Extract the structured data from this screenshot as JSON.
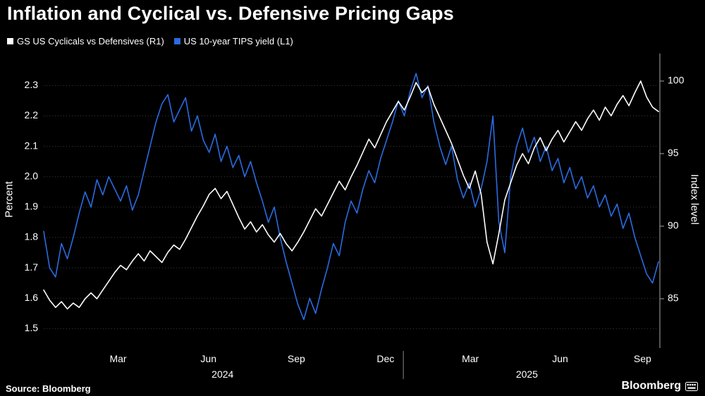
{
  "header": {
    "title": "Inflation and Cyclical vs. Defensive Pricing Gaps"
  },
  "footer": {
    "source": "Source: Bloomberg",
    "logo": "Bloomberg"
  },
  "chart_data": {
    "type": "line",
    "title": "Inflation and Cyclical vs. Defensive Pricing Gaps",
    "x_axis": {
      "start": "Jan 2024",
      "end": "Sep 2025",
      "tick_labels": [
        "Mar",
        "Jun",
        "Sep",
        "Dec",
        "Mar",
        "Jun",
        "Sep"
      ],
      "tick_t": [
        0.121,
        0.268,
        0.411,
        0.556,
        0.694,
        0.84,
        0.974
      ],
      "year_labels": [
        "2024",
        "2025"
      ],
      "year_t": [
        0.291,
        0.786
      ],
      "separator_t": [
        0.585
      ],
      "note": "evenly spaced samples, ~weekly, Jan 2024 through mid-Sep 2025"
    },
    "left_axis": {
      "label": "Percent",
      "ticks": [
        1.5,
        1.6,
        1.7,
        1.8,
        1.9,
        2.0,
        2.1,
        2.2,
        2.3
      ],
      "tick_labels": [
        "1.5",
        "1.6",
        "1.7",
        "1.8",
        "1.9",
        "2.0",
        "2.1",
        "2.2",
        "2.3"
      ],
      "range": [
        1.436,
        2.396
      ]
    },
    "right_axis": {
      "label": "Index level",
      "ticks": [
        85,
        90,
        95,
        100
      ],
      "tick_labels": [
        "85",
        "90",
        "95",
        "100"
      ],
      "range": [
        81.6,
        101.7
      ]
    },
    "grid": {
      "horizontal": true,
      "style": "dotted",
      "color": "#3b3b3b"
    },
    "legend_position": "top-left",
    "series": [
      {
        "name": "GS US Cyclicals vs Defensives (R1)",
        "axis": "right",
        "color": "#ffffff",
        "values": [
          85.6,
          84.9,
          84.4,
          84.8,
          84.3,
          84.7,
          84.4,
          85.0,
          85.4,
          85.0,
          85.6,
          86.2,
          86.8,
          87.3,
          87.0,
          87.6,
          88.1,
          87.6,
          88.3,
          87.9,
          87.5,
          88.2,
          88.7,
          88.4,
          89.1,
          89.9,
          90.7,
          91.4,
          92.2,
          92.6,
          91.9,
          92.4,
          91.5,
          90.6,
          89.8,
          90.3,
          89.6,
          90.1,
          89.4,
          88.9,
          89.5,
          88.8,
          88.3,
          88.9,
          89.6,
          90.4,
          91.2,
          90.7,
          91.5,
          92.3,
          93.1,
          92.5,
          93.4,
          94.2,
          95.1,
          96.0,
          95.4,
          96.3,
          97.2,
          97.9,
          98.6,
          98.0,
          98.9,
          99.9,
          99.2,
          99.6,
          98.4,
          97.5,
          96.6,
          95.7,
          94.6,
          93.5,
          92.6,
          93.8,
          92.2,
          88.9,
          87.4,
          89.5,
          91.8,
          93.0,
          94.2,
          95.0,
          94.3,
          95.4,
          96.1,
          95.2,
          96.0,
          96.6,
          95.8,
          96.5,
          97.2,
          96.6,
          97.4,
          98.0,
          97.3,
          98.2,
          97.6,
          98.4,
          99.0,
          98.3,
          99.2,
          100.0,
          98.9,
          98.2,
          97.9
        ]
      },
      {
        "name": "US 10-year TIPS yield (L1)",
        "axis": "left",
        "color": "#2a6be0",
        "values": [
          1.82,
          1.7,
          1.67,
          1.78,
          1.73,
          1.8,
          1.88,
          1.95,
          1.9,
          1.99,
          1.94,
          2.0,
          1.96,
          1.92,
          1.97,
          1.89,
          1.94,
          2.02,
          2.1,
          2.18,
          2.24,
          2.27,
          2.18,
          2.22,
          2.26,
          2.15,
          2.2,
          2.12,
          2.08,
          2.14,
          2.05,
          2.1,
          2.03,
          2.07,
          2.0,
          2.05,
          1.98,
          1.92,
          1.85,
          1.9,
          1.8,
          1.72,
          1.65,
          1.58,
          1.53,
          1.6,
          1.55,
          1.63,
          1.7,
          1.78,
          1.74,
          1.85,
          1.92,
          1.88,
          1.96,
          2.02,
          1.98,
          2.06,
          2.12,
          2.18,
          2.25,
          2.2,
          2.28,
          2.34,
          2.26,
          2.3,
          2.18,
          2.1,
          2.04,
          2.1,
          1.99,
          1.93,
          1.98,
          1.9,
          1.96,
          2.05,
          2.2,
          1.85,
          1.75,
          2.0,
          2.1,
          2.16,
          2.08,
          2.13,
          2.05,
          2.1,
          2.02,
          2.06,
          1.98,
          2.03,
          1.96,
          2.0,
          1.93,
          1.97,
          1.9,
          1.94,
          1.87,
          1.91,
          1.83,
          1.88,
          1.8,
          1.74,
          1.68,
          1.65,
          1.72
        ]
      }
    ]
  }
}
